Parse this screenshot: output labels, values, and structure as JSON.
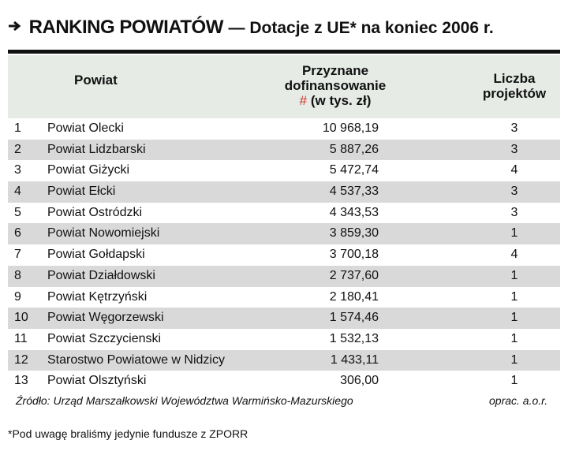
{
  "title": {
    "main": "RANKING POWIATÓW",
    "sub": "— Dotacje z UE* na koniec 2006 r."
  },
  "table": {
    "header": {
      "name": "Powiat",
      "value": "Przyznane dofinansowanie",
      "value_unit": "(w tys. zł)",
      "marker": "#",
      "count": "Liczba projektów"
    },
    "rows": [
      [
        "1",
        "Powiat Olecki",
        "10 968,19",
        "3"
      ],
      [
        "2",
        "Powiat Lidzbarski",
        "5 887,26",
        "3"
      ],
      [
        "3",
        "Powiat Giżycki",
        "5 472,74",
        "4"
      ],
      [
        "4",
        "Powiat Ełcki",
        "4 537,33",
        "3"
      ],
      [
        "5",
        "Powiat Ostródzki",
        "4 343,53",
        "3"
      ],
      [
        "6",
        "Powiat Nowomiejski",
        "3 859,30",
        "1"
      ],
      [
        "7",
        "Powiat Gołdapski",
        "3 700,18",
        "4"
      ],
      [
        "8",
        "Powiat Działdowski",
        "2 737,60",
        "1"
      ],
      [
        "9",
        "Powiat Kętrzyński",
        "2 180,41",
        "1"
      ],
      [
        "10",
        "Powiat Węgorzewski",
        "1 574,46",
        "1"
      ],
      [
        "11",
        "Powiat Szczycienski",
        "1 532,13",
        "1"
      ],
      [
        "12",
        "Starostwo Powiatowe w Nidzicy",
        "1 433,11",
        "1"
      ],
      [
        "13",
        "Powiat Olsztyński",
        "306,00",
        "1"
      ]
    ],
    "source": "Źródło: Urząd Marszałkowski Województwa Warmińsko-Mazurskiego",
    "credit": "oprac. a.o.r."
  },
  "footnote": "*Pod uwagę braliśmy jedynie fundusze z ZPORR"
}
